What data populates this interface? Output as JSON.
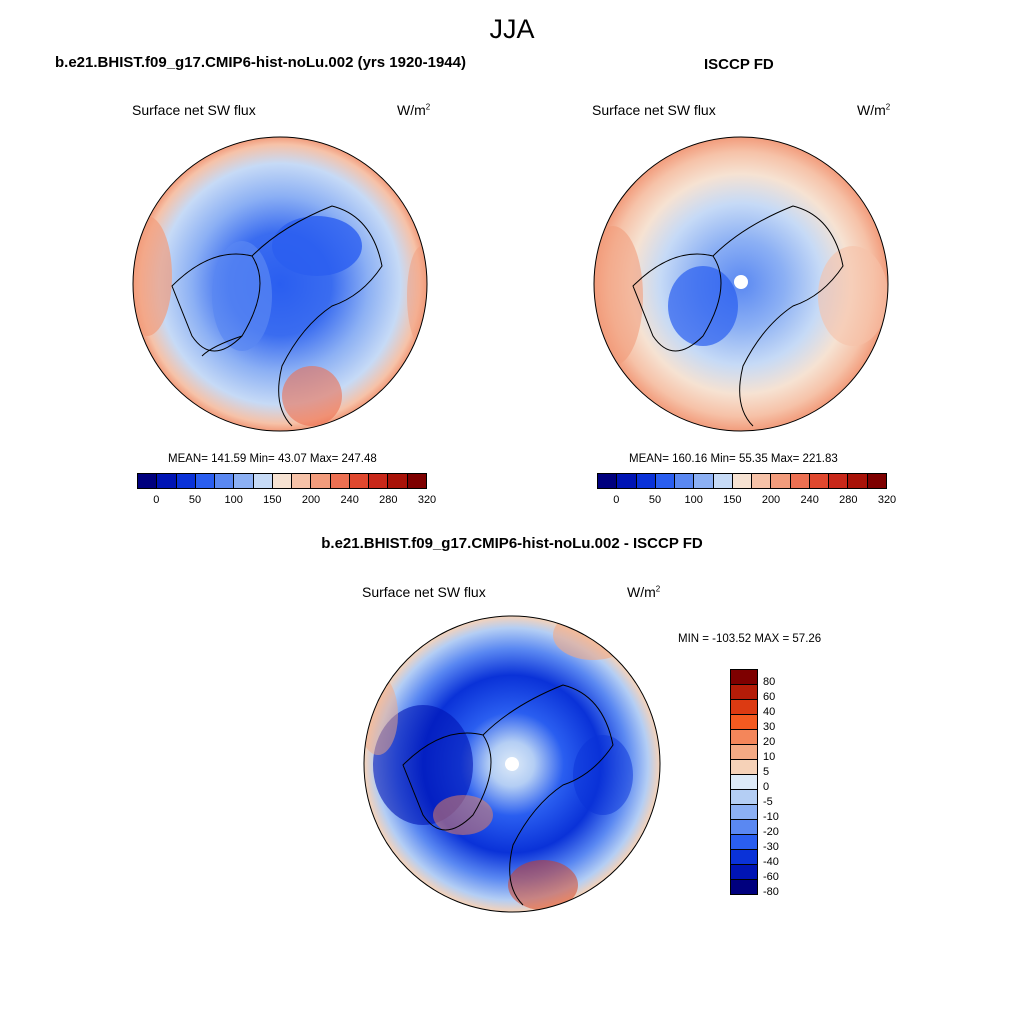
{
  "season": "JJA",
  "panel1": {
    "title": "b.e21.BHIST.f09_g17.CMIP6-hist-noLu.002 (yrs 1920-1944)",
    "variable": "Surface net SW flux",
    "units": "W/m",
    "units_sup": "2",
    "stats": "MEAN= 141.59  Min=  43.07  Max= 247.48"
  },
  "panel2": {
    "title": "ISCCP FD",
    "variable": "Surface net SW flux",
    "units": "W/m",
    "units_sup": "2",
    "stats": "MEAN= 160.16  Min=  55.35  Max= 221.83"
  },
  "panel3": {
    "title": "b.e21.BHIST.f09_g17.CMIP6-hist-noLu.002 - ISCCP FD",
    "variable": "Surface net SW flux",
    "units": "W/m",
    "units_sup": "2",
    "stats": "MIN = -103.52 MAX =  57.26"
  },
  "colorbar_abs": {
    "colors": [
      "#00007e",
      "#0014b4",
      "#0a32d8",
      "#2a5ef0",
      "#5a88f2",
      "#8cb0f4",
      "#c6daf6",
      "#f6e2d2",
      "#f6c2a8",
      "#f29c7c",
      "#ec7052",
      "#e0482e",
      "#c8281a",
      "#a81208",
      "#7e0000"
    ],
    "ticks": [
      "0",
      "50",
      "100",
      "150",
      "200",
      "240",
      "280",
      "320"
    ]
  },
  "colorbar_diff": {
    "colors": [
      "#7e0000",
      "#b41c08",
      "#dc3a12",
      "#f45a20",
      "#f4865a",
      "#f4aa84",
      "#f6d2b8",
      "#ddeaf8",
      "#b4cef4",
      "#8cb0f4",
      "#5a88f2",
      "#2a5ef0",
      "#0a32d8",
      "#0014b4",
      "#00007e"
    ],
    "ticks": [
      "80",
      "60",
      "40",
      "30",
      "20",
      "10",
      "5",
      "0",
      "-5",
      "-10",
      "-20",
      "-30",
      "-40",
      "-60",
      "-80"
    ]
  },
  "map_colors": {
    "ocean_low": "#2a5ef0",
    "ice_core": "#0a32d8",
    "mid": "#8cb0f4",
    "pale": "#c6daf6",
    "warm": "#f6c2a8",
    "hot": "#ec7052"
  }
}
